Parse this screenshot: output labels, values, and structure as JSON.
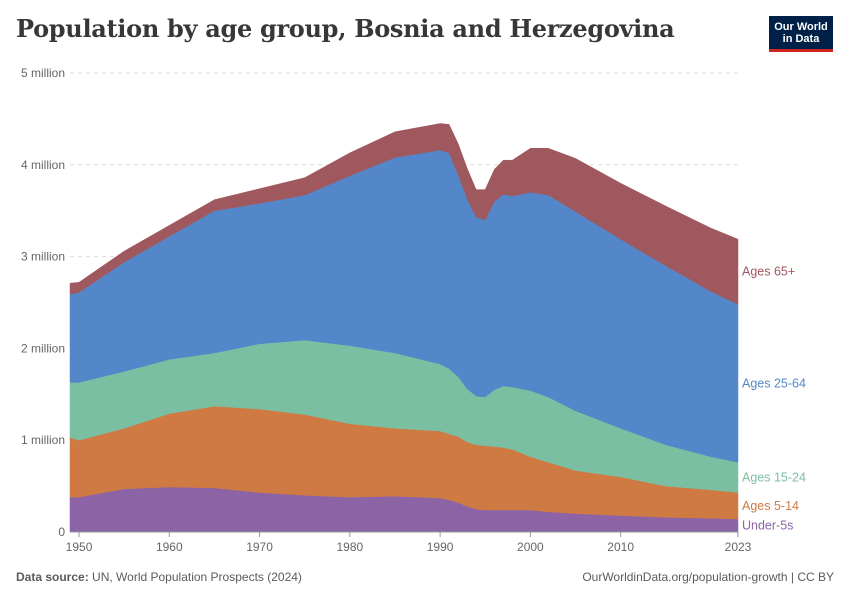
{
  "title": "Population by age group, Bosnia and Herzegovina",
  "logo": {
    "line1": "Our World",
    "line2": "in Data"
  },
  "footer": {
    "source_label": "Data source:",
    "source_text": "UN, World Population Prospects (2024)",
    "link": "OurWorldinData.org/population-growth | CC BY"
  },
  "chart_data": {
    "type": "area",
    "stacked": true,
    "x": [
      1949,
      1950,
      1955,
      1960,
      1965,
      1970,
      1975,
      1980,
      1985,
      1990,
      1991,
      1992,
      1993,
      1994,
      1995,
      1996,
      1997,
      1998,
      2000,
      2002,
      2005,
      2010,
      2015,
      2020,
      2023
    ],
    "series": [
      {
        "name": "Under-5s",
        "color": "#8c64a6",
        "values": [
          0.38,
          0.38,
          0.47,
          0.49,
          0.48,
          0.43,
          0.4,
          0.38,
          0.39,
          0.37,
          0.35,
          0.32,
          0.28,
          0.25,
          0.24,
          0.24,
          0.24,
          0.24,
          0.24,
          0.22,
          0.2,
          0.18,
          0.16,
          0.15,
          0.14
        ]
      },
      {
        "name": "Ages 5-14",
        "color": "#cf7a42",
        "values": [
          0.65,
          0.62,
          0.66,
          0.8,
          0.89,
          0.91,
          0.88,
          0.8,
          0.74,
          0.73,
          0.72,
          0.72,
          0.7,
          0.7,
          0.7,
          0.69,
          0.68,
          0.66,
          0.58,
          0.54,
          0.47,
          0.42,
          0.34,
          0.31,
          0.29
        ]
      },
      {
        "name": "Ages 15-24",
        "color": "#7bbfa2",
        "values": [
          0.6,
          0.63,
          0.62,
          0.59,
          0.58,
          0.71,
          0.81,
          0.85,
          0.82,
          0.73,
          0.71,
          0.65,
          0.58,
          0.53,
          0.53,
          0.62,
          0.67,
          0.68,
          0.72,
          0.71,
          0.65,
          0.53,
          0.45,
          0.36,
          0.33
        ]
      },
      {
        "name": "Ages 25-64",
        "color": "#5387c9",
        "values": [
          0.96,
          0.98,
          1.19,
          1.34,
          1.55,
          1.53,
          1.58,
          1.85,
          2.13,
          2.33,
          2.35,
          2.2,
          2.07,
          1.95,
          1.93,
          2.05,
          2.09,
          2.08,
          2.16,
          2.2,
          2.17,
          2.06,
          1.95,
          1.8,
          1.72
        ]
      },
      {
        "name": "Ages 65+",
        "color": "#a0585f",
        "values": [
          0.12,
          0.11,
          0.12,
          0.12,
          0.12,
          0.16,
          0.19,
          0.25,
          0.28,
          0.29,
          0.31,
          0.34,
          0.33,
          0.3,
          0.33,
          0.35,
          0.37,
          0.39,
          0.48,
          0.51,
          0.58,
          0.61,
          0.65,
          0.69,
          0.71
        ]
      }
    ],
    "xlim": [
      1949,
      2023
    ],
    "ylim": [
      0,
      5000000
    ],
    "y_unit_multiplier": 1000000,
    "x_ticks": [
      1950,
      1960,
      1970,
      1980,
      1990,
      2000,
      2010,
      2023
    ],
    "x_tick_labels": [
      "1950",
      "1960",
      "1970",
      "1980",
      "1990",
      "2000",
      "2010",
      "2023"
    ],
    "y_ticks": [
      0,
      1,
      2,
      3,
      4,
      5
    ],
    "y_tick_labels": [
      "0",
      "1 million",
      "2 million",
      "3 million",
      "4 million",
      "5 million"
    ],
    "grid": true,
    "legend": "right-inline"
  }
}
